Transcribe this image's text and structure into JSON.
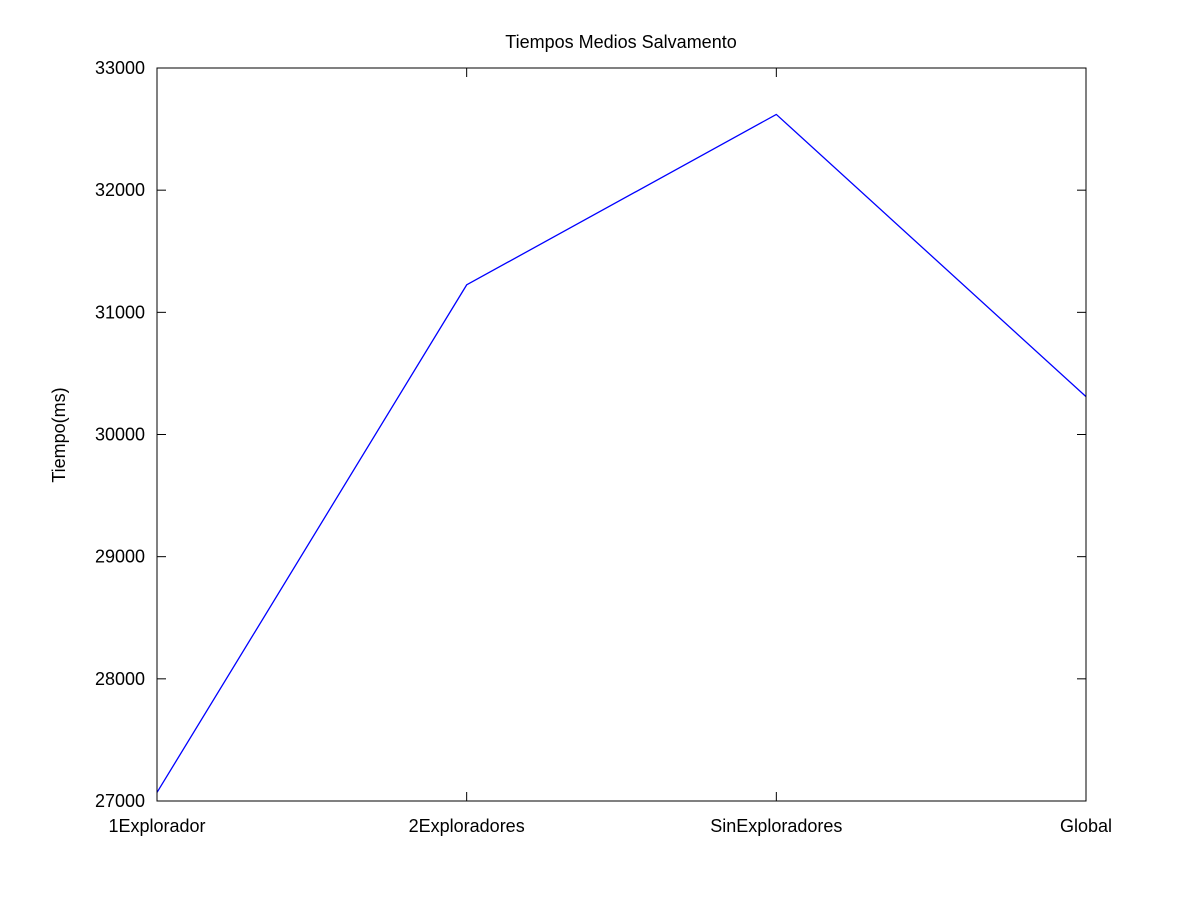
{
  "chart_data": {
    "type": "line",
    "title": "Tiempos Medios Salvamento",
    "xlabel": "",
    "ylabel": "Tiempo(ms)",
    "categories": [
      "1Explorador",
      "2Exploradores",
      "SinExploradores",
      "Global"
    ],
    "series": [
      {
        "values": [
          27070,
          31225,
          32620,
          30310
        ],
        "color": "#0000ff"
      }
    ],
    "ylim": [
      27000,
      33000
    ],
    "yticks": [
      27000,
      28000,
      29000,
      30000,
      31000,
      32000,
      33000
    ],
    "yticks_text": [
      "27000",
      "28000",
      "29000",
      "30000",
      "31000",
      "32000",
      "33000"
    ],
    "grid": false,
    "legend": "none"
  }
}
